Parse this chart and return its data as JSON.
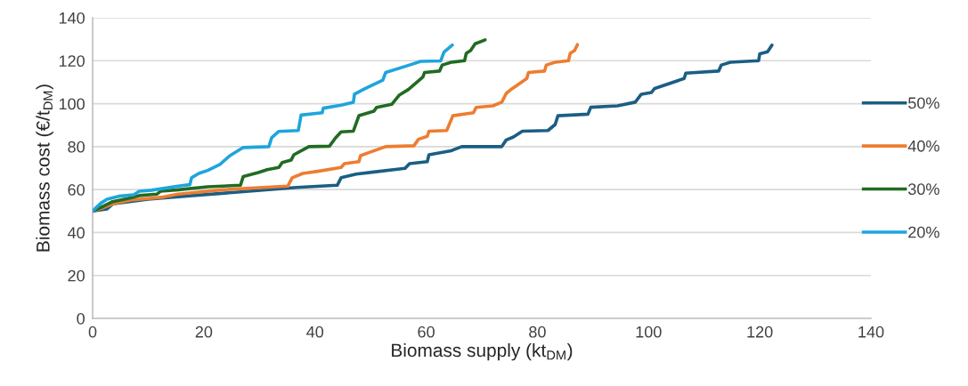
{
  "chart_data": {
    "type": "line",
    "xlabel": "Biomass supply (kt$_{DM}$)",
    "ylabel": "Biomass cost (€/t$_{DM}$)",
    "xlim": [
      0,
      140
    ],
    "xticks": [
      0,
      20,
      40,
      60,
      80,
      100,
      120,
      140
    ],
    "ylim": [
      0,
      140
    ],
    "yticks": [
      0,
      20,
      40,
      60,
      80,
      100,
      120,
      140
    ],
    "grid": "y",
    "legend": "right",
    "marker": "none",
    "line_style": "solid",
    "series": [
      {
        "name": "50%",
        "color": "#1b5e84",
        "x": [
          0,
          2.6,
          3.6,
          10,
          18,
          26.1,
          36.7,
          44,
          44.7,
          47.4,
          50.6,
          56.2,
          57,
          60.2,
          60.5,
          64.5,
          66.4,
          73.6,
          74.4,
          75.7,
          77.3,
          81.9,
          83.2,
          83.7,
          89.1,
          89.6,
          94.4,
          97.6,
          98.7,
          100.5,
          101.1,
          106.4,
          106.7,
          112.6,
          113.1,
          114.7,
          119.8,
          120,
          121.4,
          122.2
        ],
        "values": [
          50,
          51,
          53.3,
          55.5,
          57.2,
          58.8,
          61,
          62,
          65.5,
          67.2,
          68.2,
          69.9,
          72.1,
          73,
          76.2,
          78.1,
          80,
          80,
          83.1,
          84.5,
          87.2,
          87.5,
          90.3,
          94.4,
          95.1,
          98.3,
          99,
          100.7,
          104.4,
          105.2,
          107.1,
          111.7,
          114.2,
          115.2,
          118,
          119.3,
          120,
          123.2,
          124.2,
          127.3
        ]
      },
      {
        "name": "40%",
        "color": "#ed7d31",
        "x": [
          0,
          2,
          3.6,
          6.8,
          12.7,
          15.4,
          23.4,
          35.1,
          35.9,
          37.8,
          40.5,
          44.7,
          45.3,
          47.9,
          48.2,
          50.1,
          52.7,
          57.8,
          58.6,
          60.2,
          60.5,
          63.7,
          64.8,
          68.5,
          69,
          72,
          73.6,
          74.4,
          75.4,
          78.1,
          78.4,
          81.3,
          81.6,
          83.2,
          85.6,
          85.9,
          86.7,
          87.2
        ],
        "values": [
          50,
          51.6,
          53.3,
          55.1,
          56.5,
          57.9,
          59.9,
          61.6,
          65.5,
          67.5,
          68.5,
          70.3,
          72.1,
          73,
          75.8,
          77.6,
          80,
          80.4,
          83.4,
          84.8,
          87.2,
          87.5,
          94.4,
          95.8,
          98.3,
          99,
          100.7,
          104.8,
          106.9,
          111.7,
          114.5,
          115.2,
          118,
          119.3,
          120,
          123.4,
          124.8,
          127.5
        ]
      },
      {
        "name": "30%",
        "color": "#216b22",
        "x": [
          0,
          2,
          3.6,
          6.3,
          8.4,
          11.6,
          12.2,
          15.4,
          20.7,
          26.6,
          27.1,
          29.8,
          31.4,
          33.5,
          34.1,
          35.7,
          36.2,
          38.9,
          42.6,
          43.7,
          44.7,
          46.9,
          47.9,
          50.6,
          51.1,
          53.8,
          55.2,
          56.8,
          59.4,
          59.7,
          62.4,
          62.9,
          64.5,
          66.9,
          67.2,
          68,
          68.8,
          70.6
        ],
        "values": [
          50,
          52.3,
          54.4,
          55.8,
          57.2,
          57.9,
          59.2,
          59.9,
          61.3,
          62,
          66.1,
          67.9,
          69.3,
          70.3,
          72.6,
          73.7,
          76.2,
          80,
          80.2,
          84.1,
          86.9,
          87.2,
          94.4,
          96.5,
          98.3,
          99.7,
          104.1,
          106.6,
          112.4,
          114.5,
          115.2,
          118,
          119.3,
          120,
          123.4,
          124.8,
          127.9,
          129.7
        ]
      },
      {
        "name": "20%",
        "color": "#1ea5dc",
        "x": [
          0,
          1.5,
          2.6,
          4.7,
          7.4,
          8.4,
          10.6,
          15.4,
          17.5,
          17.8,
          19.1,
          20.7,
          22.9,
          24.7,
          27.1,
          31.7,
          32.2,
          33.5,
          37,
          37.5,
          41.3,
          41.5,
          44.7,
          46.9,
          47.1,
          49,
          52.2,
          52.7,
          57,
          59,
          62.6,
          63.2,
          64.7
        ],
        "values": [
          50,
          53.7,
          55.5,
          56.9,
          57.6,
          59.2,
          59.7,
          61.6,
          62.3,
          65.5,
          67.5,
          68.9,
          71.7,
          75.8,
          79.6,
          80,
          84.1,
          87.1,
          87.5,
          94.7,
          95.8,
          97.9,
          99.3,
          100.7,
          104.4,
          107,
          111,
          114.5,
          118,
          119.7,
          119.9,
          124,
          127.3
        ]
      }
    ]
  }
}
